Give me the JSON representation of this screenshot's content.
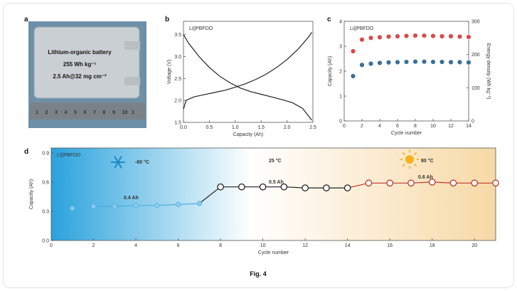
{
  "figure_caption": "Fig. 4",
  "panel_a": {
    "letter": "a",
    "lines": [
      "Lithium-organic battery",
      "255 Wh kg⁻¹",
      "2.5 Ah@32 mg cm⁻²"
    ],
    "ruler_digits": [
      "1",
      "2",
      "3",
      "4",
      "5",
      "6",
      "7",
      "8",
      "9",
      "10",
      "1"
    ]
  },
  "chart_data": [
    {
      "panel": "b",
      "type": "line",
      "legend": "Li||PBFDO",
      "xlabel": "Capacity (Ah)",
      "ylabel": "Voltage (V)",
      "xlim": [
        0,
        2.5
      ],
      "ylim": [
        1.5,
        3.8
      ],
      "xticks": [
        "0.0",
        "0.5",
        "1.0",
        "1.5",
        "2.0",
        "2.5"
      ],
      "yticks": [
        "1.5",
        "2.0",
        "2.5",
        "3.0",
        "3.5"
      ],
      "series": [
        {
          "x": [
            0,
            0.1,
            0.3,
            0.5,
            0.7,
            0.9,
            1.1,
            1.3,
            1.5,
            1.7,
            1.9,
            2.1,
            2.3,
            2.48
          ],
          "y": [
            3.5,
            3.3,
            3.0,
            2.75,
            2.55,
            2.4,
            2.28,
            2.2,
            2.14,
            2.08,
            2.02,
            1.95,
            1.82,
            1.55
          ]
        },
        {
          "x": [
            0,
            0.05,
            0.2,
            0.4,
            0.6,
            0.8,
            1.0,
            1.2,
            1.4,
            1.6,
            1.8,
            2.0,
            2.2,
            2.4,
            2.48
          ],
          "y": [
            1.8,
            2.0,
            2.08,
            2.13,
            2.18,
            2.23,
            2.3,
            2.38,
            2.48,
            2.6,
            2.75,
            2.93,
            3.15,
            3.42,
            3.55
          ]
        }
      ]
    },
    {
      "panel": "c",
      "type": "scatter",
      "legend": "Li||PBFDO",
      "xlabel": "Cycle number",
      "ylabel": "Capacity (Ah)",
      "y2label": "Energy density (Wh kg⁻¹)",
      "xlim": [
        0,
        14
      ],
      "ylim": [
        0,
        4
      ],
      "y2lim": [
        0,
        300
      ],
      "xticks": [
        "0",
        "2",
        "4",
        "6",
        "8",
        "10",
        "12",
        "14"
      ],
      "yticks": [
        "0",
        "1",
        "2",
        "3",
        "4"
      ],
      "y2ticks": [
        "0",
        "100",
        "200",
        "300"
      ],
      "series": [
        {
          "name": "Capacity",
          "axis": "left",
          "color": "#3a6f9a",
          "x": [
            1,
            2,
            3,
            4,
            5,
            6,
            7,
            8,
            9,
            10,
            11,
            12,
            13,
            14
          ],
          "y": [
            1.8,
            2.25,
            2.3,
            2.33,
            2.35,
            2.36,
            2.37,
            2.38,
            2.38,
            2.37,
            2.37,
            2.36,
            2.36,
            2.35
          ]
        },
        {
          "name": "Energy density",
          "axis": "right",
          "color": "#d94a4a",
          "x": [
            1,
            2,
            3,
            4,
            5,
            6,
            7,
            8,
            9,
            10,
            11,
            12,
            13,
            14
          ],
          "y": [
            210,
            245,
            250,
            252,
            254,
            255,
            256,
            257,
            257,
            256,
            255,
            255,
            254,
            253
          ]
        }
      ]
    },
    {
      "panel": "d",
      "type": "line",
      "legend": "Li||PBFDO",
      "xlabel": "Cycle number",
      "ylabel": "Capacity (Ah)",
      "xlim": [
        0,
        21
      ],
      "ylim": [
        0,
        0.95
      ],
      "xticks": [
        "0",
        "2",
        "4",
        "6",
        "8",
        "10",
        "12",
        "14",
        "16",
        "18",
        "20"
      ],
      "yticks": [
        "0.0",
        "0.3",
        "0.6",
        "0.9"
      ],
      "annotations": {
        "cold_temp": "-60 °C",
        "room_temp": "25 °C",
        "hot_temp": "80 °C",
        "cold_cap": "0.4 Ah",
        "room_cap": "0.5 Ah",
        "hot_cap": "0.6 Ah"
      },
      "series": [
        {
          "name": "-60 °C",
          "color": "#4aaee0",
          "x": [
            1,
            2,
            3,
            4,
            5,
            6,
            7
          ],
          "y": [
            0.33,
            0.35,
            0.35,
            0.36,
            0.36,
            0.37,
            0.38
          ]
        },
        {
          "name": "25 °C",
          "color": "#222222",
          "x": [
            7,
            8,
            9,
            10,
            11,
            12,
            13,
            14
          ],
          "y": [
            0.38,
            0.55,
            0.55,
            0.55,
            0.55,
            0.54,
            0.54,
            0.54
          ]
        },
        {
          "name": "80 °C",
          "color": "#c0392b",
          "x": [
            14,
            15,
            16,
            17,
            18,
            19,
            20,
            21
          ],
          "y": [
            0.54,
            0.59,
            0.59,
            0.59,
            0.6,
            0.59,
            0.59,
            0.59
          ]
        }
      ]
    }
  ]
}
